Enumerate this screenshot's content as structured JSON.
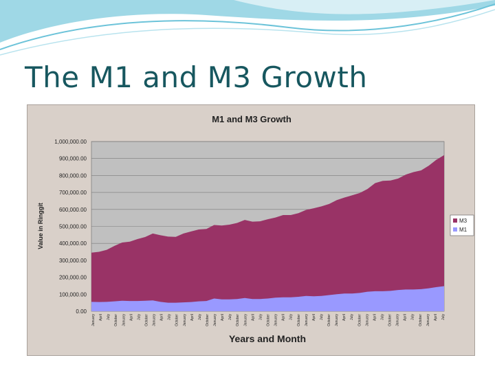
{
  "slide": {
    "title": "The M1 and M3 Growth"
  },
  "colors": {
    "title": "#17575f",
    "m3": "#993366",
    "m1": "#9999ff",
    "plot_bg": "#c0c0c0",
    "frame_bg": "#d9d0c9"
  },
  "chart_data": {
    "type": "area",
    "title": "M1 and M3 Growth",
    "xlabel": "Years and Month",
    "ylabel": "Value in Ringgit",
    "ylim": [
      0,
      1000000
    ],
    "yticks": [
      "0.00",
      "100,000.00",
      "200,000.00",
      "300,000.00",
      "400,000.00",
      "500,000.00",
      "600,000.00",
      "700,000.00",
      "800,000.00",
      "900,000.00",
      "1,000,000.00"
    ],
    "grid": true,
    "stacked": false,
    "legend_position": "right",
    "x_tick_labels": [
      "January",
      "April",
      "July",
      "October",
      "January",
      "April",
      "July",
      "October",
      "January",
      "April",
      "July",
      "October",
      "January",
      "April",
      "July",
      "October",
      "January",
      "April",
      "July",
      "October",
      "January",
      "April",
      "July",
      "October",
      "January",
      "April",
      "July",
      "October",
      "January",
      "April",
      "July",
      "October",
      "January",
      "April",
      "July",
      "October",
      "January",
      "April",
      "July",
      "October",
      "January",
      "April",
      "July",
      "October",
      "January",
      "April",
      "July"
    ],
    "series": [
      {
        "name": "M3",
        "values": [
          345000,
          350000,
          362000,
          385000,
          405000,
          410000,
          425000,
          437000,
          458000,
          448000,
          440000,
          438000,
          458000,
          470000,
          482000,
          485000,
          508000,
          505000,
          510000,
          520000,
          538000,
          528000,
          530000,
          542000,
          552000,
          567000,
          567000,
          578000,
          597000,
          607000,
          618000,
          632000,
          655000,
          670000,
          683000,
          697000,
          720000,
          755000,
          768000,
          770000,
          782000,
          805000,
          820000,
          830000,
          858000,
          893000,
          920000
        ]
      },
      {
        "name": "M1",
        "values": [
          55000,
          54000,
          55000,
          58000,
          62000,
          60000,
          60000,
          62000,
          64000,
          55000,
          50000,
          50000,
          52000,
          54000,
          58000,
          60000,
          75000,
          70000,
          70000,
          72000,
          78000,
          72000,
          72000,
          75000,
          80000,
          82000,
          82000,
          85000,
          90000,
          88000,
          90000,
          95000,
          100000,
          104000,
          104000,
          108000,
          115000,
          118000,
          118000,
          120000,
          125000,
          128000,
          128000,
          130000,
          135000,
          142000,
          148000
        ]
      }
    ]
  }
}
